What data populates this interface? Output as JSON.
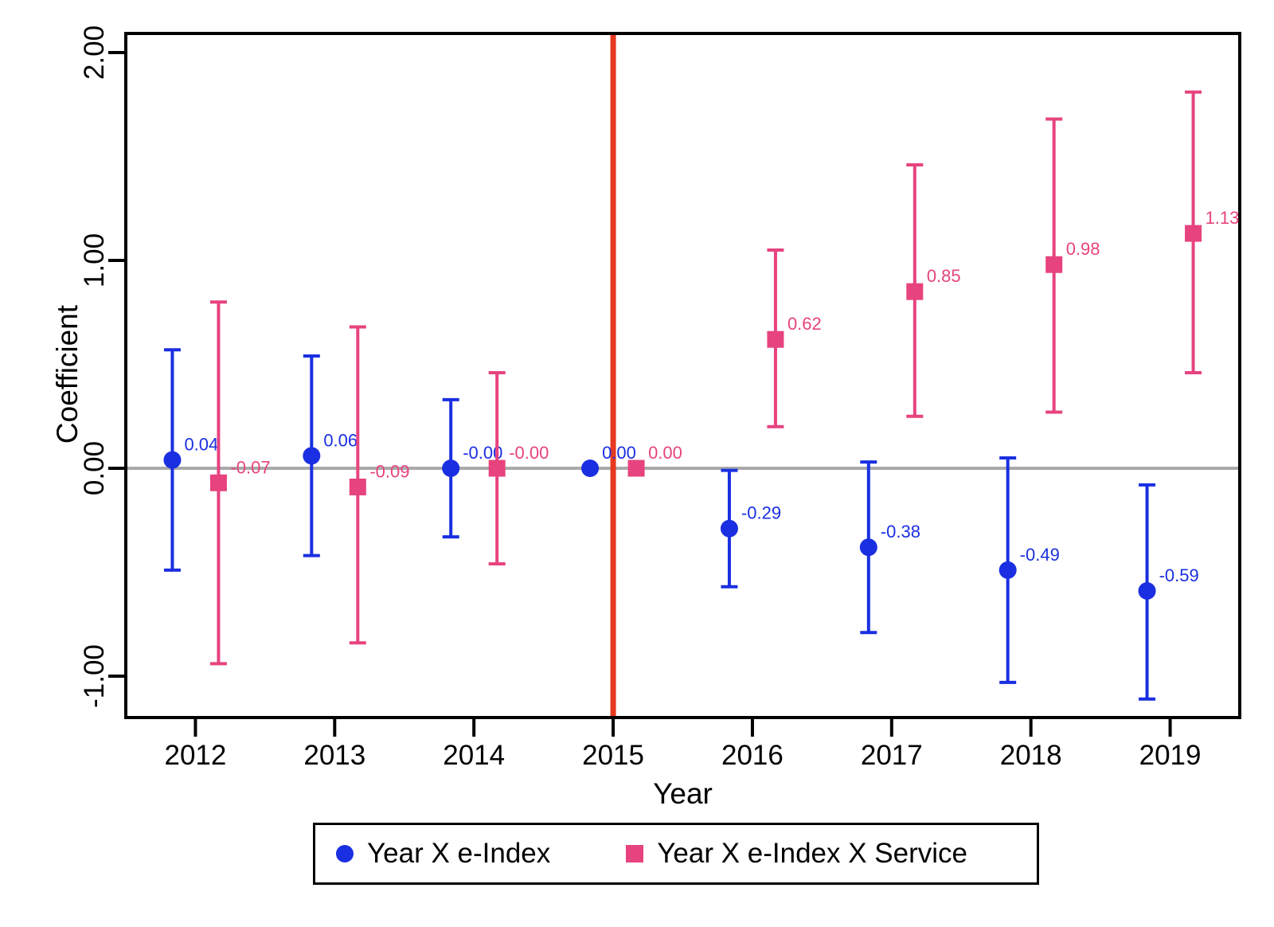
{
  "figure": {
    "background": "#ffffff",
    "axis_color": "#000000",
    "zero_line_color": "#a9a9a9",
    "treatment_line_color": "#e6391f",
    "blue": "#1a2fe1",
    "pink": "#e7437e"
  },
  "axes": {
    "ylabel": "Coefficient",
    "xlabel": "Year",
    "y_ticks": [
      {
        "label": "2.00",
        "value": 2
      },
      {
        "label": "1.00",
        "value": 1
      },
      {
        "label": "0.00",
        "value": 0
      },
      {
        "label": "-1.00",
        "value": -1
      }
    ],
    "x_ticks": [
      {
        "label": "2012",
        "value": 2012
      },
      {
        "label": "2013",
        "value": 2013
      },
      {
        "label": "2014",
        "value": 2014
      },
      {
        "label": "2015",
        "value": 2015
      },
      {
        "label": "2016",
        "value": 2016
      },
      {
        "label": "2017",
        "value": 2017
      },
      {
        "label": "2018",
        "value": 2018
      },
      {
        "label": "2019",
        "value": 2019
      }
    ]
  },
  "legend": {
    "items": [
      {
        "label": "Year X e-Index",
        "marker": "circle",
        "color": "#1a2fe1"
      },
      {
        "label": "Year X e-Index X Service",
        "marker": "square",
        "color": "#e7437e"
      }
    ]
  },
  "chart_data": {
    "type": "scatter",
    "title": "",
    "xlabel": "Year",
    "ylabel": "Coefficient",
    "xlim": [
      2011.5,
      2019.5
    ],
    "ylim": [
      -1.2,
      2.09
    ],
    "grid": false,
    "legend_position": "bottom",
    "x": [
      2012,
      2013,
      2014,
      2015,
      2016,
      2017,
      2018,
      2019
    ],
    "reference_lines": {
      "horizontal_y": 0,
      "vertical_x": 2015
    },
    "series": [
      {
        "name": "Year X e-Index",
        "marker": "circle",
        "color": "#1a2fe1",
        "values": [
          0.04,
          0.06,
          -0.0,
          0.0,
          -0.29,
          -0.38,
          -0.49,
          -0.59
        ],
        "labels": [
          "0.04",
          "0.06",
          "-0.00",
          "0.00",
          "-0.29",
          "-0.38",
          "-0.49",
          "-0.59"
        ],
        "ci_low": [
          -0.49,
          -0.42,
          -0.33,
          null,
          -0.57,
          -0.79,
          -1.03,
          -1.11
        ],
        "ci_high": [
          0.57,
          0.54,
          0.33,
          null,
          -0.01,
          0.03,
          0.05,
          -0.08
        ]
      },
      {
        "name": "Year X e-Index X Service",
        "marker": "square",
        "color": "#e7437e",
        "values": [
          -0.07,
          -0.09,
          -0.0,
          0.0,
          0.62,
          0.85,
          0.98,
          1.13
        ],
        "labels": [
          "-0.07",
          "-0.09",
          "-0.00",
          "0.00",
          "0.62",
          "0.85",
          "0.98",
          "1.13"
        ],
        "ci_low": [
          -0.94,
          -0.84,
          -0.46,
          null,
          0.2,
          0.25,
          0.27,
          0.46
        ],
        "ci_high": [
          0.8,
          0.68,
          0.46,
          null,
          1.05,
          1.46,
          1.68,
          1.81
        ]
      }
    ]
  }
}
